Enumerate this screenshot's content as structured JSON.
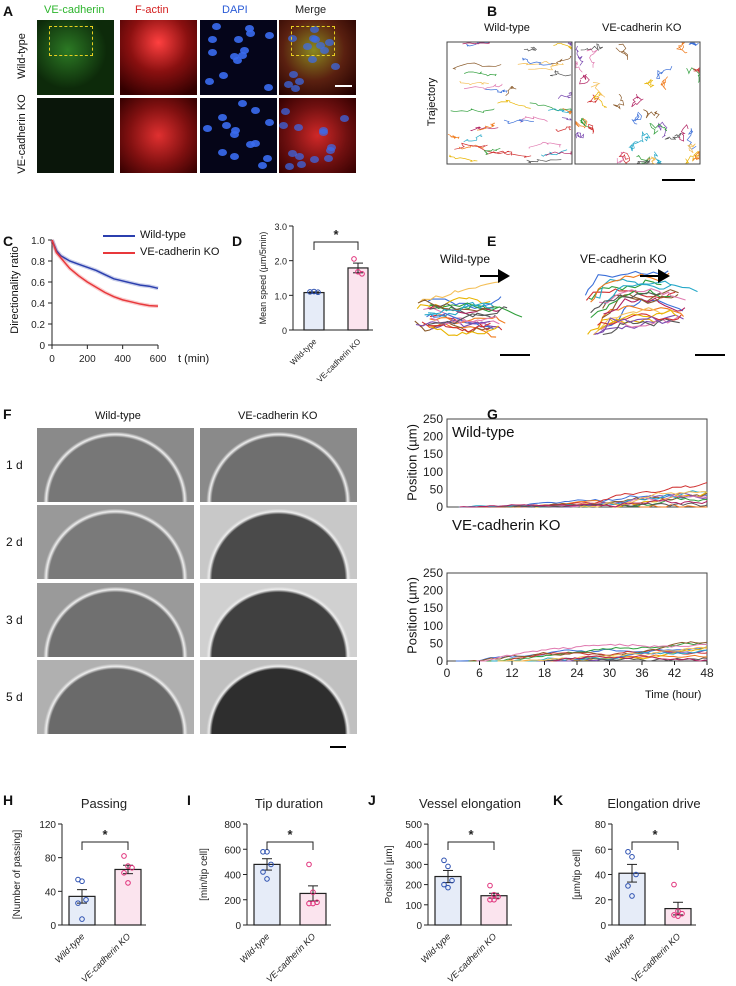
{
  "panel_labels": {
    "A": "A",
    "B": "B",
    "C": "C",
    "D": "D",
    "E": "E",
    "F": "F",
    "G": "G",
    "H": "H",
    "I": "I",
    "J": "J",
    "K": "K"
  },
  "panelA": {
    "columns": [
      "VE-cadherin",
      "F-actin",
      "DAPI",
      "Merge"
    ],
    "column_colors": [
      "#2db52d",
      "#d42020",
      "#2a5bd7",
      "#222222"
    ],
    "rows": [
      "Wild-type",
      "VE-cadherin KO"
    ]
  },
  "panelB": {
    "columns": [
      "Wild-type",
      "VE-cadherin KO"
    ],
    "row_label": "Trajectory"
  },
  "panelE": {
    "columns": [
      "Wild-type",
      "VE-cadherin KO"
    ]
  },
  "panelF": {
    "columns": [
      "Wild-type",
      "VE-cadherin KO"
    ],
    "rows": [
      "1 d",
      "2 d",
      "3 d",
      "5 d"
    ]
  },
  "panelG": {
    "plots": [
      "Wild-type",
      "VE-cadherin KO"
    ],
    "ylabel": "Position (µm)",
    "xlabel": "Time (hour)",
    "yticks": [
      "0",
      "50",
      "100",
      "150",
      "200",
      "250"
    ],
    "xticks": [
      "0",
      "6",
      "12",
      "18",
      "24",
      "30",
      "36",
      "42",
      "48"
    ],
    "line_colors": [
      "#3b6fd8",
      "#f07a1a",
      "#2e9e3a",
      "#d03030",
      "#8a5a2a",
      "#e8b400",
      "#7a4ab0",
      "#26a8c8",
      "#e07ab0",
      "#555555",
      "#f4c05a",
      "#b02060"
    ]
  },
  "chart_data": [
    {
      "panel": "C",
      "type": "line",
      "xlabel": "t (min)",
      "ylabel": "Directionality ratio",
      "xlim": [
        0,
        600
      ],
      "ylim": [
        0,
        1.0
      ],
      "xticks": [
        "0",
        "200",
        "400",
        "600"
      ],
      "yticks": [
        "0",
        "0.2",
        "0.4",
        "0.6",
        "0.8",
        "1.0"
      ],
      "x": [
        0,
        25,
        50,
        100,
        150,
        200,
        250,
        300,
        350,
        400,
        450,
        500,
        550,
        600
      ],
      "series": [
        {
          "name": "Wild-type",
          "color": "#2b3fae",
          "values": [
            1.0,
            0.9,
            0.85,
            0.8,
            0.77,
            0.74,
            0.71,
            0.67,
            0.63,
            0.61,
            0.59,
            0.57,
            0.56,
            0.54
          ]
        },
        {
          "name": "VE-cadherin KO",
          "color": "#e8383b",
          "values": [
            1.0,
            0.88,
            0.83,
            0.73,
            0.66,
            0.6,
            0.55,
            0.5,
            0.46,
            0.43,
            0.41,
            0.39,
            0.375,
            0.37
          ]
        }
      ]
    },
    {
      "panel": "D",
      "type": "bar",
      "title": "",
      "ylabel": "Mean speed (µm/5min)",
      "ylim": [
        0,
        3.0
      ],
      "yticks": [
        "0",
        "1.0",
        "2.0",
        "3.0"
      ],
      "categories": [
        "Wild-type",
        "VE-cadherin KO"
      ],
      "values": [
        1.08,
        1.79
      ],
      "sem": [
        0.02,
        0.14
      ],
      "points": [
        [
          1.1,
          1.11,
          1.09
        ],
        [
          2.05,
          1.68,
          1.62
        ]
      ],
      "significance": "*"
    },
    {
      "panel": "H",
      "type": "bar",
      "title": "Passing",
      "ylabel": "[Number of passing]",
      "ylim": [
        0,
        120
      ],
      "yticks": [
        "0",
        "40",
        "80",
        "120"
      ],
      "categories": [
        "Wild-type",
        "VE-cadherin KO"
      ],
      "values": [
        34,
        66
      ],
      "sem": [
        8,
        5
      ],
      "points": [
        [
          54,
          52,
          30,
          26,
          7
        ],
        [
          82,
          70,
          68,
          62,
          50
        ]
      ],
      "significance": "*"
    },
    {
      "panel": "I",
      "type": "bar",
      "title": "Tip duration",
      "ylabel": "[min/tip cell]",
      "ylim": [
        0,
        800
      ],
      "yticks": [
        "0",
        "200",
        "400",
        "600",
        "800"
      ],
      "categories": [
        "Wild-type",
        "VE-cadherin KO"
      ],
      "values": [
        480,
        250
      ],
      "sem": [
        45,
        60
      ],
      "points": [
        [
          580,
          580,
          480,
          420,
          365
        ],
        [
          480,
          260,
          180,
          170,
          170
        ]
      ],
      "significance": "*"
    },
    {
      "panel": "J",
      "type": "bar",
      "title": "Vessel elongation",
      "ylabel": "Position [µm]",
      "ylim": [
        0,
        500
      ],
      "yticks": [
        "0",
        "100",
        "200",
        "300",
        "400",
        "500"
      ],
      "categories": [
        "Wild-type",
        "VE-cadherin KO"
      ],
      "values": [
        240,
        145
      ],
      "sem": [
        30,
        12
      ],
      "points": [
        [
          320,
          290,
          220,
          200,
          185
        ],
        [
          195,
          150,
          140,
          125,
          125
        ]
      ],
      "significance": "*"
    },
    {
      "panel": "K",
      "type": "bar",
      "title": "Elongation drive",
      "ylabel": "[µm/tip cell]",
      "ylim": [
        0,
        80
      ],
      "yticks": [
        "0",
        "20",
        "40",
        "60",
        "80"
      ],
      "categories": [
        "Wild-type",
        "VE-cadherin KO"
      ],
      "values": [
        41,
        13
      ],
      "sem": [
        7,
        5
      ],
      "points": [
        [
          58,
          54,
          40,
          31,
          23
        ],
        [
          32,
          11,
          9,
          8,
          7
        ]
      ],
      "significance": "*"
    }
  ],
  "colors": {
    "wt": "#2b4fb0",
    "ko": "#e0307a"
  }
}
